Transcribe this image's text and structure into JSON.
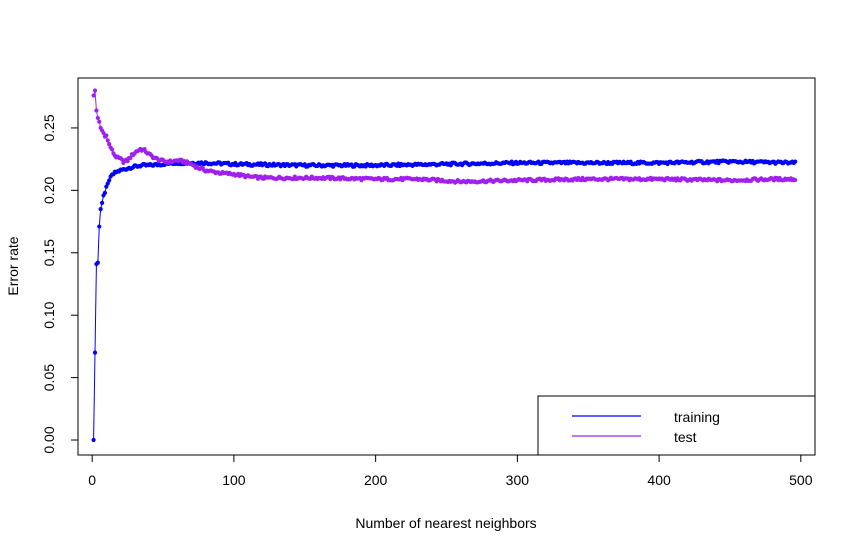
{
  "chart_data": {
    "type": "scatter",
    "title": "",
    "xlabel": "Number of nearest neighbors",
    "ylabel": "Error rate",
    "xlim": [
      -10,
      510
    ],
    "ylim": [
      -0.012,
      0.29
    ],
    "xticks": [
      0,
      100,
      200,
      300,
      400,
      500
    ],
    "xtick_labels": [
      "0",
      "100",
      "200",
      "300",
      "400",
      "500"
    ],
    "yticks": [
      0.0,
      0.05,
      0.1,
      0.15,
      0.2,
      0.25
    ],
    "ytick_labels": [
      "0.00",
      "0.05",
      "0.10",
      "0.15",
      "0.20",
      "0.25"
    ],
    "grid": false,
    "legend": {
      "position": "bottom-right"
    },
    "x_range": [
      1,
      496
    ],
    "series": [
      {
        "name": "training",
        "color": "#0000ff",
        "points": [
          [
            1,
            0.0
          ],
          [
            2,
            0.07
          ],
          [
            3,
            0.141
          ],
          [
            4,
            0.142
          ],
          [
            5,
            0.171
          ],
          [
            6,
            0.185
          ],
          [
            7,
            0.19
          ],
          [
            8,
            0.196
          ],
          [
            9,
            0.198
          ],
          [
            10,
            0.203
          ],
          [
            12,
            0.208
          ],
          [
            14,
            0.212
          ],
          [
            16,
            0.214
          ],
          [
            18,
            0.215
          ],
          [
            20,
            0.216
          ],
          [
            23,
            0.217
          ],
          [
            26,
            0.218
          ],
          [
            30,
            0.219
          ],
          [
            35,
            0.22
          ],
          [
            40,
            0.22
          ],
          [
            50,
            0.221
          ],
          [
            60,
            0.222
          ],
          [
            80,
            0.222
          ],
          [
            100,
            0.221
          ],
          [
            150,
            0.22
          ],
          [
            200,
            0.22
          ],
          [
            250,
            0.221
          ],
          [
            300,
            0.222
          ],
          [
            350,
            0.222
          ],
          [
            400,
            0.222
          ],
          [
            450,
            0.223
          ],
          [
            496,
            0.222
          ]
        ]
      },
      {
        "name": "test",
        "color": "#a020f0",
        "points": [
          [
            1,
            0.276
          ],
          [
            2,
            0.28
          ],
          [
            3,
            0.264
          ],
          [
            4,
            0.258
          ],
          [
            5,
            0.255
          ],
          [
            6,
            0.25
          ],
          [
            7,
            0.248
          ],
          [
            8,
            0.246
          ],
          [
            9,
            0.243
          ],
          [
            10,
            0.244
          ],
          [
            11,
            0.24
          ],
          [
            12,
            0.237
          ],
          [
            14,
            0.232
          ],
          [
            16,
            0.228
          ],
          [
            18,
            0.226
          ],
          [
            20,
            0.225
          ],
          [
            22,
            0.223
          ],
          [
            25,
            0.224
          ],
          [
            28,
            0.228
          ],
          [
            31,
            0.231
          ],
          [
            34,
            0.233
          ],
          [
            37,
            0.232
          ],
          [
            40,
            0.229
          ],
          [
            44,
            0.226
          ],
          [
            48,
            0.224
          ],
          [
            52,
            0.223
          ],
          [
            56,
            0.223
          ],
          [
            60,
            0.224
          ],
          [
            65,
            0.223
          ],
          [
            70,
            0.221
          ],
          [
            75,
            0.218
          ],
          [
            80,
            0.216
          ],
          [
            90,
            0.214
          ],
          [
            100,
            0.213
          ],
          [
            110,
            0.211
          ],
          [
            120,
            0.21
          ],
          [
            140,
            0.21
          ],
          [
            160,
            0.21
          ],
          [
            200,
            0.209
          ],
          [
            230,
            0.209
          ],
          [
            260,
            0.207
          ],
          [
            300,
            0.208
          ],
          [
            350,
            0.209
          ],
          [
            400,
            0.209
          ],
          [
            450,
            0.208
          ],
          [
            480,
            0.209
          ],
          [
            496,
            0.209
          ]
        ]
      }
    ]
  }
}
